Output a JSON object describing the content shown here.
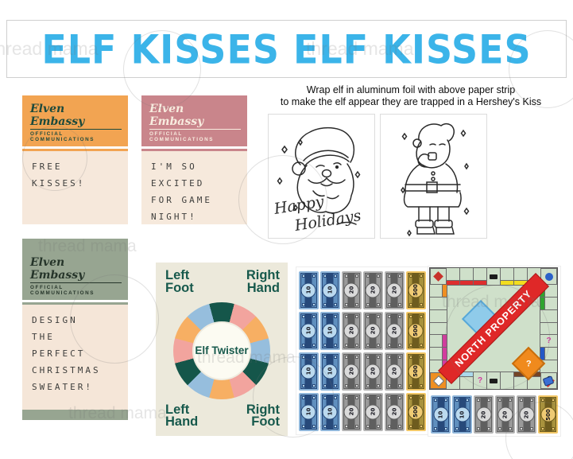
{
  "watermark": {
    "text": "thread mama"
  },
  "banner": {
    "title": "ELF KISSES ELF KISSES",
    "text_color": "#3BB4E9"
  },
  "instructions": {
    "line1": "Wrap elf in aluminum foil with above paper strip",
    "line2": "to make the elf appear they are trapped in a Hershey's Kiss"
  },
  "stationery_cards": [
    {
      "brand": "Elven Embassy",
      "division": "OFFICIAL COMMUNICATIONS",
      "message": "FREE\nKISSES!",
      "header_color": "#F2A452",
      "brand_color": "#1D4A3C",
      "body_color": "#F6E8DB",
      "has_footer": false
    },
    {
      "brand": "Elven Embassy",
      "division": "OFFICIAL COMMUNICATIONS",
      "message": "I'M SO\nEXCITED\nFOR GAME\nNIGHT!",
      "header_color": "#C9858B",
      "brand_color": "#F8ECDF",
      "body_color": "#F6E9DC",
      "has_footer": false
    },
    {
      "brand": "Elven Embassy",
      "division": "OFFICIAL COMMUNICATIONS",
      "message": "DESIGN\nTHE\nPERFECT\nCHRISTMAS\nSWEATER!",
      "header_color": "#97A591",
      "brand_color": "#26352A",
      "body_color": "#F5E6D8",
      "has_footer": true
    }
  ],
  "coloring_panels": [
    {
      "name": "santa-winking-face",
      "caption_line1": "Happy",
      "caption_line2": "Holidays"
    },
    {
      "name": "santa-full-body"
    }
  ],
  "twister": {
    "title": "Elf Twister",
    "corner_labels": [
      "Left Foot",
      "Right Hand",
      "Left Hand",
      "Right Foot"
    ],
    "wheel_colors": [
      "#15564A",
      "#F2A49E",
      "#F7AF63",
      "#96BEDD"
    ],
    "background": "#ECE9DB",
    "text_color": "#17594C"
  },
  "money": {
    "column_denominations": [
      "10",
      "10",
      "20",
      "20",
      "20",
      "500"
    ],
    "sheet_rows": 4,
    "styles": {
      "10": {
        "base": "#8FB6DA",
        "mid": "#5F8FBE",
        "dark": "#27497A",
        "light": "#BBDAEF"
      },
      "20": {
        "base": "#B3B3B3",
        "mid": "#9A9A9A",
        "dark": "#5F5F5F",
        "light": "#DADADA"
      },
      "500": {
        "base": "#F2C766",
        "mid": "#A8923D",
        "dark": "#6E5C1E",
        "light": "#EFCB74"
      }
    }
  },
  "board": {
    "banner_text": "NORTH PROPERTY",
    "banner_color": "#DF2828",
    "go_label": "GO",
    "chance_symbol": "?",
    "field_color": "#CFE0CA",
    "top_cells": [
      "red",
      "red",
      "red",
      "rail",
      "yellow",
      "yellow",
      "yellow"
    ],
    "right_cells": [
      "green",
      "green",
      "plain",
      "plain",
      "question",
      "blue",
      "plain"
    ],
    "bottom_cells": [
      "lightblue",
      "lightblue",
      "question",
      "rail",
      "plain",
      "brown",
      "brown"
    ],
    "left_cells": [
      "orange",
      "plain",
      "plain",
      "plain",
      "pink",
      "pink",
      "pink"
    ],
    "bar_colors": {
      "red": "#DD2E2E",
      "yellow": "#F2DD1F",
      "green": "#2FA32F",
      "blue": "#2457C5",
      "lightblue": "#ABD9EC",
      "brown": "#754526",
      "orange": "#EF8F22",
      "pink": "#D23C9E"
    }
  }
}
